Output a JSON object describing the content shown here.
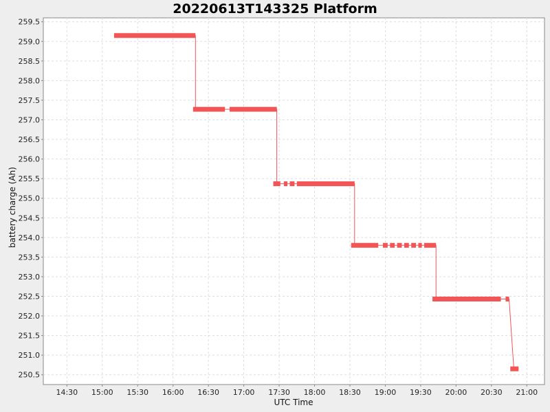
{
  "chart_data": {
    "type": "line",
    "title": "20220613T143325 Platform",
    "xlabel": "UTC Time",
    "ylabel": "battery charge (Ah)",
    "x_ticks": [
      "14:30",
      "15:00",
      "15:30",
      "16:00",
      "16:30",
      "17:00",
      "17:30",
      "18:00",
      "18:30",
      "19:00",
      "19:30",
      "20:00",
      "20:30",
      "21:00"
    ],
    "y_ticks": [
      "259.5",
      "259.0",
      "258.5",
      "258.0",
      "257.5",
      "257.0",
      "256.5",
      "256.0",
      "255.5",
      "255.0",
      "254.5",
      "254.0",
      "253.5",
      "253.0",
      "252.5",
      "252.0",
      "251.5",
      "251.0",
      "250.5"
    ],
    "xlim": [
      "14:10",
      "21:15"
    ],
    "ylim": [
      250.25,
      259.6
    ],
    "grid": true,
    "series_color": "#f25555",
    "segments": [
      {
        "x": [
          "15:10",
          "16:19"
        ],
        "y": 259.15
      },
      {
        "x": [
          "16:17",
          "16:44"
        ],
        "y": 257.27
      },
      {
        "x": [
          "16:48",
          "17:28"
        ],
        "y": 257.27
      },
      {
        "x": [
          "17:25",
          "17:31"
        ],
        "y": 255.37
      },
      {
        "x": [
          "17:34",
          "17:37"
        ],
        "y": 255.37
      },
      {
        "x": [
          "17:39",
          "17:43"
        ],
        "y": 255.37
      },
      {
        "x": [
          "17:45",
          "18:34"
        ],
        "y": 255.37
      },
      {
        "x": [
          "18:31",
          "18:54"
        ],
        "y": 253.8
      },
      {
        "x": [
          "18:58",
          "19:02"
        ],
        "y": 253.8
      },
      {
        "x": [
          "19:04",
          "19:08"
        ],
        "y": 253.8
      },
      {
        "x": [
          "19:10",
          "19:14"
        ],
        "y": 253.8
      },
      {
        "x": [
          "19:16",
          "19:20"
        ],
        "y": 253.8
      },
      {
        "x": [
          "19:22",
          "19:26"
        ],
        "y": 253.8
      },
      {
        "x": [
          "19:28",
          "19:31"
        ],
        "y": 253.8
      },
      {
        "x": [
          "19:33",
          "19:43"
        ],
        "y": 253.8
      },
      {
        "x": [
          "19:40",
          "20:38"
        ],
        "y": 252.43
      },
      {
        "x": [
          "20:42",
          "20:45"
        ],
        "y": 252.43
      },
      {
        "x": [
          "20:46",
          "20:53"
        ],
        "y": 250.65
      }
    ],
    "line": {
      "x": [
        "15:10",
        "16:19",
        "16:19",
        "16:44",
        "16:48",
        "17:28",
        "17:28",
        "18:34",
        "18:34",
        "19:43",
        "19:43",
        "20:38",
        "20:42",
        "20:45",
        "20:49",
        "20:53"
      ],
      "y": [
        259.15,
        259.15,
        257.27,
        257.27,
        257.27,
        257.27,
        255.37,
        255.37,
        253.8,
        253.8,
        252.43,
        252.43,
        252.43,
        252.43,
        250.65,
        250.65
      ]
    }
  }
}
